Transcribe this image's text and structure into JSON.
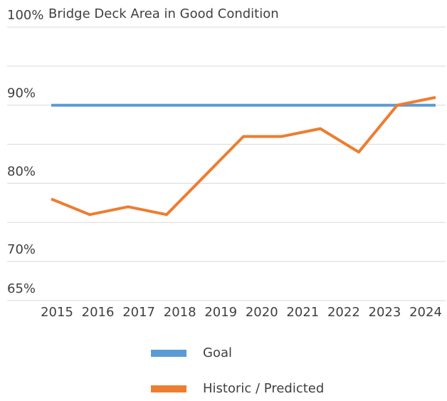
{
  "chart_data": {
    "type": "line",
    "title": "Bridge Deck Area in Good Condition",
    "categories": [
      "2015",
      "2016",
      "2017",
      "2018",
      "2019",
      "2020",
      "2021",
      "2022",
      "2023",
      "2024",
      null
    ],
    "series": [
      {
        "name": "Goal",
        "color": "#5b9bd5",
        "values": [
          90,
          90,
          90,
          90,
          90,
          90,
          90,
          90,
          90,
          90,
          90
        ]
      },
      {
        "name": "Historic / Predicted",
        "color": "#ed7d31",
        "values": [
          78,
          76,
          77,
          76,
          81,
          86,
          86,
          87,
          84,
          90,
          91
        ]
      }
    ],
    "ylim": [
      65,
      100
    ],
    "yticks": [
      {
        "value": 65,
        "label": "65%"
      },
      {
        "value": 70,
        "label": "70%"
      },
      {
        "value": 80,
        "label": "80%"
      },
      {
        "value": 90,
        "label": "90%"
      },
      {
        "value": 100,
        "label": "100%"
      }
    ],
    "minor_yticks": [
      75,
      85,
      95
    ],
    "grid": true,
    "legend": "bottom"
  }
}
